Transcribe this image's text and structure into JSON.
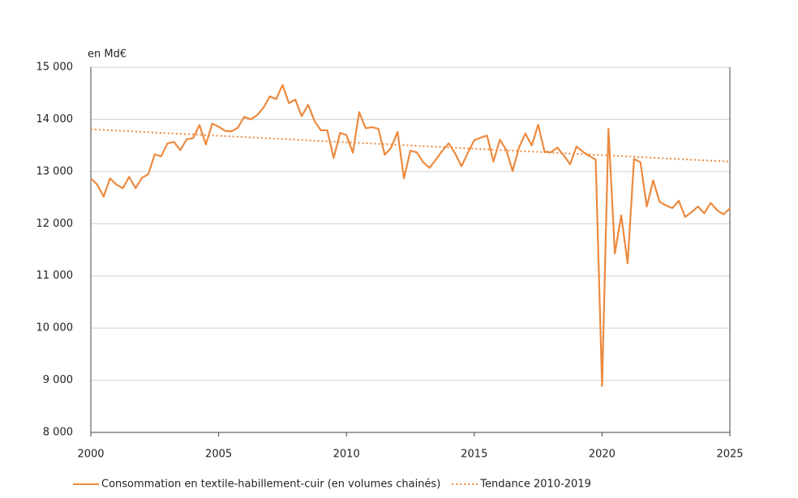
{
  "chart_data": {
    "type": "line",
    "y_label": "en Md€",
    "xlim": [
      2000,
      2025
    ],
    "xticks": [
      2000,
      2005,
      2010,
      2015,
      2020,
      2025
    ],
    "ylim": [
      8000,
      15000
    ],
    "yticks": [
      {
        "value": 8000,
        "label": "8 000"
      },
      {
        "value": 9000,
        "label": "9 000"
      },
      {
        "value": 10000,
        "label": "10 000"
      },
      {
        "value": 11000,
        "label": "11 000"
      },
      {
        "value": 12000,
        "label": "12 000"
      },
      {
        "value": 13000,
        "label": "13 000"
      },
      {
        "value": 14000,
        "label": "14 000"
      },
      {
        "value": 15000,
        "label": "15 000"
      }
    ],
    "grid": true,
    "legend": "bottom",
    "series": [
      {
        "name": "Consommation en textile-habillement-cuir (en volumes chainés)",
        "color": "#ec8a3f",
        "style": "solid",
        "x": [
          2000,
          2000.25,
          2000.5,
          2000.75,
          2001,
          2001.25,
          2001.5,
          2001.75,
          2002,
          2002.25,
          2002.5,
          2002.75,
          2003,
          2003.25,
          2003.5,
          2003.75,
          2004,
          2004.25,
          2004.5,
          2004.75,
          2005,
          2005.25,
          2005.5,
          2005.75,
          2006,
          2006.25,
          2006.5,
          2006.75,
          2007,
          2007.25,
          2007.5,
          2007.75,
          2008,
          2008.25,
          2008.5,
          2008.75,
          2009,
          2009.25,
          2009.5,
          2009.75,
          2010,
          2010.25,
          2010.5,
          2010.75,
          2011,
          2011.25,
          2011.5,
          2011.75,
          2012,
          2012.25,
          2012.5,
          2012.75,
          2013,
          2013.25,
          2013.5,
          2013.75,
          2014,
          2014.25,
          2014.5,
          2014.75,
          2015,
          2015.25,
          2015.5,
          2015.75,
          2016,
          2016.25,
          2016.5,
          2016.75,
          2017,
          2017.25,
          2017.5,
          2017.75,
          2018,
          2018.25,
          2018.5,
          2018.75,
          2019,
          2019.25,
          2019.5,
          2019.75,
          2020,
          2020.25,
          2020.5,
          2020.75,
          2021,
          2021.25,
          2021.5,
          2021.75,
          2022,
          2022.25,
          2022.5,
          2022.75,
          2023,
          2023.25,
          2023.5,
          2023.75,
          2024,
          2024.25,
          2024.5,
          2024.75,
          2025
        ],
        "values": [
          12870,
          12750,
          12520,
          12870,
          12750,
          12680,
          12900,
          12680,
          12880,
          12950,
          13330,
          13290,
          13540,
          13570,
          13410,
          13620,
          13640,
          13890,
          13520,
          13920,
          13860,
          13780,
          13770,
          13840,
          14050,
          14000,
          14080,
          14220,
          14440,
          14390,
          14660,
          14310,
          14380,
          14060,
          14280,
          13970,
          13790,
          13790,
          13260,
          13740,
          13700,
          13360,
          14140,
          13830,
          13850,
          13820,
          13320,
          13460,
          13760,
          12870,
          13400,
          13370,
          13180,
          13070,
          13230,
          13400,
          13540,
          13350,
          13100,
          13360,
          13600,
          13650,
          13690,
          13190,
          13610,
          13420,
          13010,
          13460,
          13730,
          13500,
          13900,
          13380,
          13370,
          13460,
          13310,
          13140,
          13480,
          13380,
          13300,
          13230,
          8890,
          13820,
          11430,
          12160,
          11240,
          13240,
          13180,
          12330,
          12830,
          12420,
          12350,
          12300,
          12440,
          12130,
          12220,
          12330,
          12200,
          12400,
          12260,
          12180,
          12290
        ]
      },
      {
        "name": "Tendance 2010-2019",
        "color": "#ec8a3f",
        "style": "dotted",
        "x": [
          2000,
          2025
        ],
        "values": [
          13810,
          13190
        ]
      }
    ]
  }
}
